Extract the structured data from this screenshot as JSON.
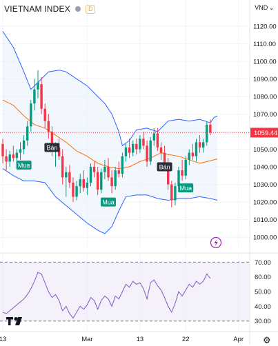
{
  "header": {
    "title": "VIETNAM INDEX",
    "status_icon": "gray-dot-icon",
    "delayed_badge": "D",
    "currency": "VND",
    "currency_icon": "chevron-down-icon"
  },
  "footer": {
    "settings_icon": "gear-icon",
    "logo": "TV"
  },
  "colors": {
    "up": "#089981",
    "down": "#f23645",
    "band": "#2962ff",
    "band_fill": "#e8f0fd",
    "basis": "#ff6d00",
    "rsi": "#7e57c2",
    "rsi_fill": "#ede7f6"
  },
  "chart_data": [
    {
      "type": "candlestick",
      "title": "VIETNAM INDEX",
      "y_ticks": [
        1000,
        1010,
        1020,
        1030,
        1040,
        1050,
        1060,
        1070,
        1080,
        1090,
        1100,
        1110,
        1120
      ],
      "y_tick_labels": [
        "1000.00",
        "1010.00",
        "1020.00",
        "1030.00",
        "1040.00",
        "1050.00",
        "1060.00",
        "1070.00",
        "1080.00",
        "1090.00",
        "1100.00",
        "1110.00",
        "1120.00"
      ],
      "ylim": [
        993,
        1127
      ],
      "x_tick_labels": [
        "13",
        "Mar",
        "13",
        "22",
        "Apr"
      ],
      "x_tick_index": [
        0,
        24,
        39,
        52,
        67
      ],
      "n_slots": 70,
      "last_price": 1059.44,
      "last_price_label": "1059.44",
      "candles": [
        [
          1053,
          1056,
          1042,
          1046
        ],
        [
          1046,
          1050,
          1038,
          1043
        ],
        [
          1043,
          1049,
          1040,
          1047
        ],
        [
          1047,
          1052,
          1043,
          1045
        ],
        [
          1045,
          1050,
          1041,
          1048
        ],
        [
          1048,
          1054,
          1044,
          1050
        ],
        [
          1050,
          1058,
          1047,
          1055
        ],
        [
          1055,
          1066,
          1052,
          1063
        ],
        [
          1063,
          1078,
          1060,
          1076
        ],
        [
          1076,
          1090,
          1072,
          1084
        ],
        [
          1084,
          1095,
          1079,
          1088
        ],
        [
          1087,
          1091,
          1070,
          1073
        ],
        [
          1073,
          1076,
          1062,
          1066
        ],
        [
          1066,
          1070,
          1056,
          1060
        ],
        [
          1060,
          1063,
          1046,
          1049
        ],
        [
          1049,
          1054,
          1040,
          1051
        ],
        [
          1051,
          1056,
          1044,
          1046
        ],
        [
          1046,
          1050,
          1030,
          1034
        ],
        [
          1034,
          1040,
          1023,
          1037
        ],
        [
          1037,
          1041,
          1028,
          1031
        ],
        [
          1031,
          1034,
          1020,
          1023
        ],
        [
          1023,
          1032,
          1021,
          1029
        ],
        [
          1029,
          1036,
          1025,
          1033
        ],
        [
          1033,
          1038,
          1026,
          1028
        ],
        [
          1028,
          1034,
          1024,
          1031
        ],
        [
          1031,
          1042,
          1029,
          1040
        ],
        [
          1040,
          1043,
          1034,
          1037
        ],
        [
          1037,
          1040,
          1024,
          1027
        ],
        [
          1027,
          1039,
          1025,
          1037
        ],
        [
          1037,
          1044,
          1033,
          1040
        ],
        [
          1040,
          1045,
          1032,
          1034
        ],
        [
          1034,
          1038,
          1025,
          1029
        ],
        [
          1029,
          1040,
          1027,
          1038
        ],
        [
          1038,
          1043,
          1034,
          1036
        ],
        [
          1036,
          1048,
          1034,
          1046
        ],
        [
          1046,
          1053,
          1043,
          1051
        ],
        [
          1051,
          1056,
          1045,
          1048
        ],
        [
          1048,
          1055,
          1046,
          1053
        ],
        [
          1053,
          1056,
          1047,
          1050
        ],
        [
          1050,
          1058,
          1048,
          1056
        ],
        [
          1056,
          1060,
          1050,
          1052
        ],
        [
          1052,
          1055,
          1040,
          1043
        ],
        [
          1043,
          1057,
          1041,
          1055
        ],
        [
          1055,
          1062,
          1052,
          1059
        ],
        [
          1059,
          1062,
          1049,
          1051
        ],
        [
          1051,
          1054,
          1044,
          1048
        ],
        [
          1048,
          1052,
          1039,
          1042
        ],
        [
          1042,
          1045,
          1027,
          1030
        ],
        [
          1030,
          1032,
          1017,
          1021
        ],
        [
          1021,
          1031,
          1018,
          1029
        ],
        [
          1029,
          1040,
          1027,
          1038
        ],
        [
          1038,
          1044,
          1032,
          1035
        ],
        [
          1035,
          1046,
          1033,
          1044
        ],
        [
          1044,
          1050,
          1041,
          1048
        ],
        [
          1048,
          1053,
          1044,
          1046
        ],
        [
          1046,
          1056,
          1043,
          1054
        ],
        [
          1054,
          1058,
          1048,
          1051
        ],
        [
          1051,
          1056,
          1048,
          1054
        ],
        [
          1054,
          1066,
          1052,
          1064
        ],
        [
          1064,
          1067,
          1058,
          1059.44
        ]
      ],
      "bollinger": {
        "upper": [
          [
            0,
            1117
          ],
          [
            3,
            1108
          ],
          [
            6,
            1094
          ],
          [
            8,
            1084
          ],
          [
            10,
            1088
          ],
          [
            13,
            1094
          ],
          [
            16,
            1095
          ],
          [
            18,
            1094
          ],
          [
            21,
            1090
          ],
          [
            24,
            1086
          ],
          [
            27,
            1080
          ],
          [
            29,
            1076
          ],
          [
            31,
            1070
          ],
          [
            33,
            1060
          ],
          [
            34,
            1052
          ],
          [
            36,
            1055
          ],
          [
            38,
            1061
          ],
          [
            41,
            1062
          ],
          [
            44,
            1060
          ],
          [
            47,
            1066
          ],
          [
            50,
            1067
          ],
          [
            53,
            1066
          ],
          [
            56,
            1067
          ],
          [
            59,
            1065
          ],
          [
            60,
            1068
          ],
          [
            61,
            1069
          ]
        ],
        "basis": [
          [
            0,
            1078
          ],
          [
            3,
            1075
          ],
          [
            6,
            1069
          ],
          [
            9,
            1064
          ],
          [
            12,
            1062
          ],
          [
            15,
            1058
          ],
          [
            18,
            1054
          ],
          [
            21,
            1049
          ],
          [
            24,
            1046
          ],
          [
            27,
            1042
          ],
          [
            30,
            1040
          ],
          [
            33,
            1039
          ],
          [
            36,
            1040
          ],
          [
            39,
            1043
          ],
          [
            42,
            1045
          ],
          [
            45,
            1048
          ],
          [
            47,
            1047
          ],
          [
            50,
            1046
          ],
          [
            53,
            1044
          ],
          [
            56,
            1042
          ],
          [
            58,
            1043
          ],
          [
            61,
            1044.5
          ]
        ],
        "lower": [
          [
            0,
            1039
          ],
          [
            3,
            1035
          ],
          [
            6,
            1032
          ],
          [
            9,
            1032
          ],
          [
            12,
            1031
          ],
          [
            15,
            1023
          ],
          [
            18,
            1018
          ],
          [
            21,
            1013
          ],
          [
            24,
            1008
          ],
          [
            27,
            1004
          ],
          [
            29,
            1002
          ],
          [
            31,
            1006
          ],
          [
            33,
            1015
          ],
          [
            35,
            1023
          ],
          [
            38,
            1024
          ],
          [
            41,
            1024
          ],
          [
            44,
            1022
          ],
          [
            47,
            1021
          ],
          [
            50,
            1022
          ],
          [
            53,
            1022
          ],
          [
            56,
            1023
          ],
          [
            59,
            1022
          ],
          [
            61,
            1021
          ]
        ]
      },
      "signals": [
        {
          "label": "Bán",
          "kind": "sell",
          "index": 14,
          "price": 1051
        },
        {
          "label": "Mua",
          "kind": "buy",
          "index": 6,
          "price": 1041
        },
        {
          "label": "Mua",
          "kind": "buy",
          "index": 30,
          "price": 1020
        },
        {
          "label": "Bán",
          "kind": "sell",
          "index": 46,
          "price": 1040
        },
        {
          "label": "Mua",
          "kind": "buy",
          "index": 52,
          "price": 1028
        }
      ]
    },
    {
      "type": "line",
      "title": "",
      "y_tick_labels": [
        "70.00",
        "60.00",
        "50.00",
        "40.00",
        "30.00"
      ],
      "y_ticks": [
        70,
        60,
        50,
        40,
        30
      ],
      "ylim": [
        28,
        73
      ],
      "band": [
        30,
        70
      ],
      "series": [
        {
          "values": [
            [
              0,
              36
            ],
            [
              1,
              35
            ],
            [
              2,
              37
            ],
            [
              3,
              39
            ],
            [
              4,
              41
            ],
            [
              5,
              43
            ],
            [
              6,
              45
            ],
            [
              7,
              48
            ],
            [
              8,
              52
            ],
            [
              9,
              57
            ],
            [
              10,
              63
            ],
            [
              11,
              62
            ],
            [
              12,
              56
            ],
            [
              13,
              50
            ],
            [
              14,
              46
            ],
            [
              15,
              48
            ],
            [
              16,
              44
            ],
            [
              17,
              37
            ],
            [
              18,
              40
            ],
            [
              19,
              35
            ],
            [
              20,
              32
            ],
            [
              21,
              36
            ],
            [
              22,
              40
            ],
            [
              23,
              38
            ],
            [
              24,
              41
            ],
            [
              25,
              46
            ],
            [
              26,
              44
            ],
            [
              27,
              38
            ],
            [
              28,
              44
            ],
            [
              29,
              47
            ],
            [
              30,
              45
            ],
            [
              31,
              40
            ],
            [
              32,
              47
            ],
            [
              33,
              45
            ],
            [
              34,
              50
            ],
            [
              35,
              55
            ],
            [
              36,
              53
            ],
            [
              37,
              57
            ],
            [
              38,
              55
            ],
            [
              39,
              56
            ],
            [
              40,
              52
            ],
            [
              41,
              45
            ],
            [
              42,
              56
            ],
            [
              43,
              58
            ],
            [
              44,
              54
            ],
            [
              45,
              51
            ],
            [
              46,
              46
            ],
            [
              47,
              40
            ],
            [
              48,
              36
            ],
            [
              49,
              42
            ],
            [
              50,
              50
            ],
            [
              51,
              47
            ],
            [
              52,
              51
            ],
            [
              53,
              55
            ],
            [
              54,
              53
            ],
            [
              55,
              57
            ],
            [
              56,
              55
            ],
            [
              57,
              57
            ],
            [
              58,
              62
            ],
            [
              59,
              59
            ]
          ]
        }
      ]
    }
  ]
}
